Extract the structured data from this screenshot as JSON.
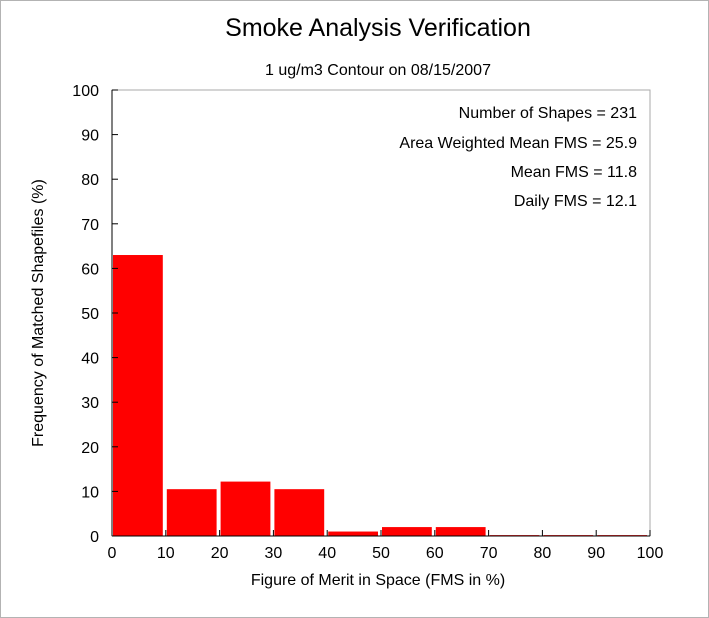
{
  "chart_data": {
    "type": "bar",
    "title": "Smoke Analysis Verification",
    "subtitle": "1 ug/m3 Contour on 08/15/2007",
    "xlabel": "Figure of Merit in Space (FMS in %)",
    "ylabel": "Frequency of Matched Shapefiles (%)",
    "xlim": [
      0,
      100
    ],
    "ylim": [
      0,
      100
    ],
    "x_ticks": [
      "0",
      "10",
      "20",
      "30",
      "40",
      "50",
      "60",
      "70",
      "80",
      "90",
      "100"
    ],
    "y_ticks": [
      "0",
      "10",
      "20",
      "30",
      "40",
      "50",
      "60",
      "70",
      "80",
      "90",
      "100"
    ],
    "bins": [
      [
        0,
        10
      ],
      [
        10,
        20
      ],
      [
        20,
        30
      ],
      [
        30,
        40
      ],
      [
        40,
        50
      ],
      [
        50,
        60
      ],
      [
        60,
        70
      ],
      [
        70,
        80
      ],
      [
        80,
        90
      ],
      [
        90,
        100
      ]
    ],
    "values": [
      63.0,
      10.5,
      12.2,
      10.5,
      1.0,
      2.0,
      2.0,
      0.2,
      0.2,
      0.2
    ],
    "bar_color": "#ff0000",
    "grid": false,
    "annotations": [
      "Number of Shapes = 231",
      "Area Weighted Mean FMS = 25.9",
      "Mean FMS = 11.8",
      "Daily FMS = 12.1"
    ]
  }
}
